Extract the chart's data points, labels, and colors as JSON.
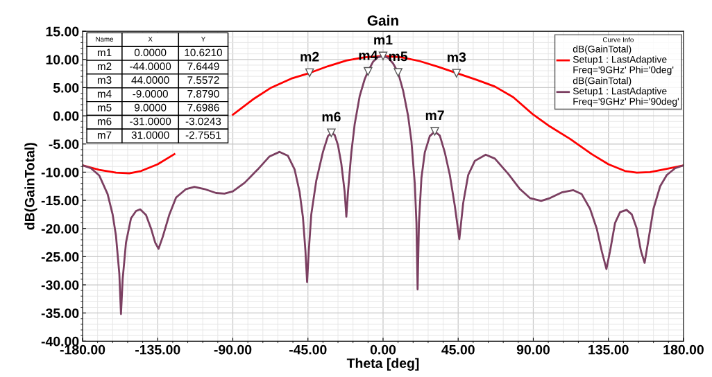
{
  "chart_data": {
    "type": "line",
    "title": "Gain",
    "xlabel": "Theta [deg]",
    "ylabel": "dB(GainTotal)",
    "legend_title": "Curve Info",
    "legend": "top right",
    "grid": true,
    "marker": "none",
    "line_style": "solid",
    "xlim": [
      -180,
      180
    ],
    "ylim": [
      -40,
      15
    ],
    "xticks": [
      {
        "value": -180,
        "label": "-180.00"
      },
      {
        "value": -135,
        "label": "-135.00"
      },
      {
        "value": -90,
        "label": "-90.00"
      },
      {
        "value": -45,
        "label": "-45.00"
      },
      {
        "value": 0,
        "label": "0.00"
      },
      {
        "value": 45,
        "label": "45.00"
      },
      {
        "value": 90,
        "label": "90.00"
      },
      {
        "value": 135,
        "label": "135.00"
      },
      {
        "value": 180,
        "label": "180.00"
      }
    ],
    "yticks": [
      {
        "value": -40,
        "label": "-40.00"
      },
      {
        "value": -35,
        "label": "-35.00"
      },
      {
        "value": -30,
        "label": "-30.00"
      },
      {
        "value": -25,
        "label": "-25.00"
      },
      {
        "value": -20,
        "label": "-20.00"
      },
      {
        "value": -15,
        "label": "-15.00"
      },
      {
        "value": -10,
        "label": "-10.00"
      },
      {
        "value": -5,
        "label": "-5.00"
      },
      {
        "value": 0,
        "label": "0.00"
      },
      {
        "value": 5,
        "label": "5.00"
      },
      {
        "value": 10,
        "label": "10.00"
      },
      {
        "value": 15,
        "label": "15.00"
      }
    ],
    "series": [
      {
        "name": "dB(GainTotal)\nSetup1 : LastAdaptive\nFreq='9GHz' Phi='0deg'",
        "color": "#ff0000",
        "x": [
          -180,
          -170,
          -160,
          -152,
          -145,
          -135,
          -125,
          -112,
          -100,
          -90,
          -78,
          -67,
          -55,
          -44,
          -33,
          -22,
          -11,
          0,
          11,
          22,
          33,
          44,
          56,
          67,
          78,
          90,
          100,
          112,
          125,
          135,
          145,
          152,
          160,
          170,
          180
        ],
        "values": [
          -8.8,
          -9.6,
          -10.1,
          -10.2,
          -9.8,
          -8.6,
          -6.8,
          null,
          null,
          0.2,
          2.9,
          5.0,
          6.6,
          7.6,
          8.8,
          9.8,
          10.4,
          10.6,
          10.4,
          9.7,
          8.7,
          7.6,
          6.4,
          5.2,
          3.3,
          0.2,
          -1.9,
          -4.1,
          -6.8,
          -8.6,
          -9.8,
          -10.1,
          -10.0,
          -9.4,
          -8.8
        ]
      },
      {
        "name": "dB(GainTotal)\nSetup1 : LastAdaptive\nFreq='9GHz' Phi='90deg'",
        "color": "#7b3f61",
        "x": [
          -180,
          -175,
          -170,
          -165,
          -162,
          -160,
          -158,
          -157,
          -156,
          -154,
          -151,
          -148,
          -145.5,
          -142,
          -139,
          -136.5,
          -134.5,
          -132,
          -128,
          -124,
          -118,
          -113,
          -107,
          -100,
          -95,
          -90,
          -83,
          -75,
          -68,
          -62,
          -57,
          -53,
          -50,
          -48,
          -46.5,
          -45.5,
          -44.5,
          -43,
          -40,
          -36,
          -33,
          -31,
          -29,
          -27,
          -25,
          -23,
          -22,
          -21,
          -19,
          -17,
          -14,
          -11,
          -9,
          -6,
          -3,
          0,
          3,
          6,
          9,
          12,
          15,
          17,
          19,
          20,
          20.7,
          21.5,
          23,
          25,
          28,
          31,
          34,
          37,
          40,
          43,
          45.7,
          48,
          51,
          55,
          61.5,
          67,
          75,
          82,
          88,
          94.7,
          100,
          107,
          114,
          119,
          124,
          128,
          131,
          133.8,
          136,
          139,
          142,
          145.9,
          149,
          152,
          154.5,
          156.7,
          159,
          162,
          166,
          170,
          175,
          180
        ],
        "values": [
          -8.8,
          -9.3,
          -10.6,
          -13.9,
          -17.5,
          -21.3,
          -28,
          -35.2,
          -29,
          -22.5,
          -18.2,
          -16.9,
          -16.6,
          -17.6,
          -20,
          -22.5,
          -23.6,
          -21.5,
          -17.5,
          -14.5,
          -13,
          -12.6,
          -13,
          -13.7,
          -13.8,
          -13.4,
          -11.9,
          -9.5,
          -7.2,
          -6.4,
          -7.1,
          -9.5,
          -13.5,
          -18,
          -24,
          -29.5,
          -24,
          -17.5,
          -11.5,
          -6.4,
          -3.6,
          -3.0,
          -3.4,
          -5.2,
          -8.5,
          -13.5,
          -17.9,
          -13.5,
          -6.5,
          -1.5,
          3.5,
          6.5,
          7.9,
          9.6,
          10.4,
          10.6,
          10.3,
          9.3,
          7.7,
          4.5,
          0,
          -4.5,
          -12,
          -19,
          -30.8,
          -19,
          -11,
          -6.5,
          -3.6,
          -2.8,
          -3.5,
          -6.5,
          -10.5,
          -16,
          -21.9,
          -15.5,
          -10.5,
          -8,
          -6.9,
          -7.6,
          -10.3,
          -13,
          -14.6,
          -15.1,
          -14.6,
          -13.6,
          -13.2,
          -13.9,
          -16.5,
          -20,
          -24,
          -27.2,
          -24,
          -19,
          -17.1,
          -16.7,
          -17.5,
          -20,
          -24,
          -26.1,
          -22,
          -16.5,
          -12.5,
          -10.5,
          -9.3,
          -8.8
        ]
      }
    ],
    "annotations": [
      {
        "text": "m1",
        "x": 0,
        "y": 10.621
      },
      {
        "text": "m2",
        "x": -44,
        "y": 7.6449
      },
      {
        "text": "m3",
        "x": 44,
        "y": 7.5572
      },
      {
        "text": "m4",
        "x": -9,
        "y": 7.879
      },
      {
        "text": "m5",
        "x": 9,
        "y": 7.6986
      },
      {
        "text": "m6",
        "x": -31,
        "y": -3.0243
      },
      {
        "text": "m7",
        "x": 31,
        "y": -2.7551
      },
      "Name",
      "X",
      "Y",
      "m1",
      "0.0000",
      "10.6210",
      "m2",
      "-44.0000",
      "7.6449",
      "m3",
      "44.0000",
      "7.5572",
      "m4",
      "-9.0000",
      "7.8790",
      "m5",
      "9.0000",
      "7.6986",
      "m6",
      "-31.0000",
      "-3.0243",
      "m7",
      "31.0000",
      "-2.7551"
    ]
  }
}
